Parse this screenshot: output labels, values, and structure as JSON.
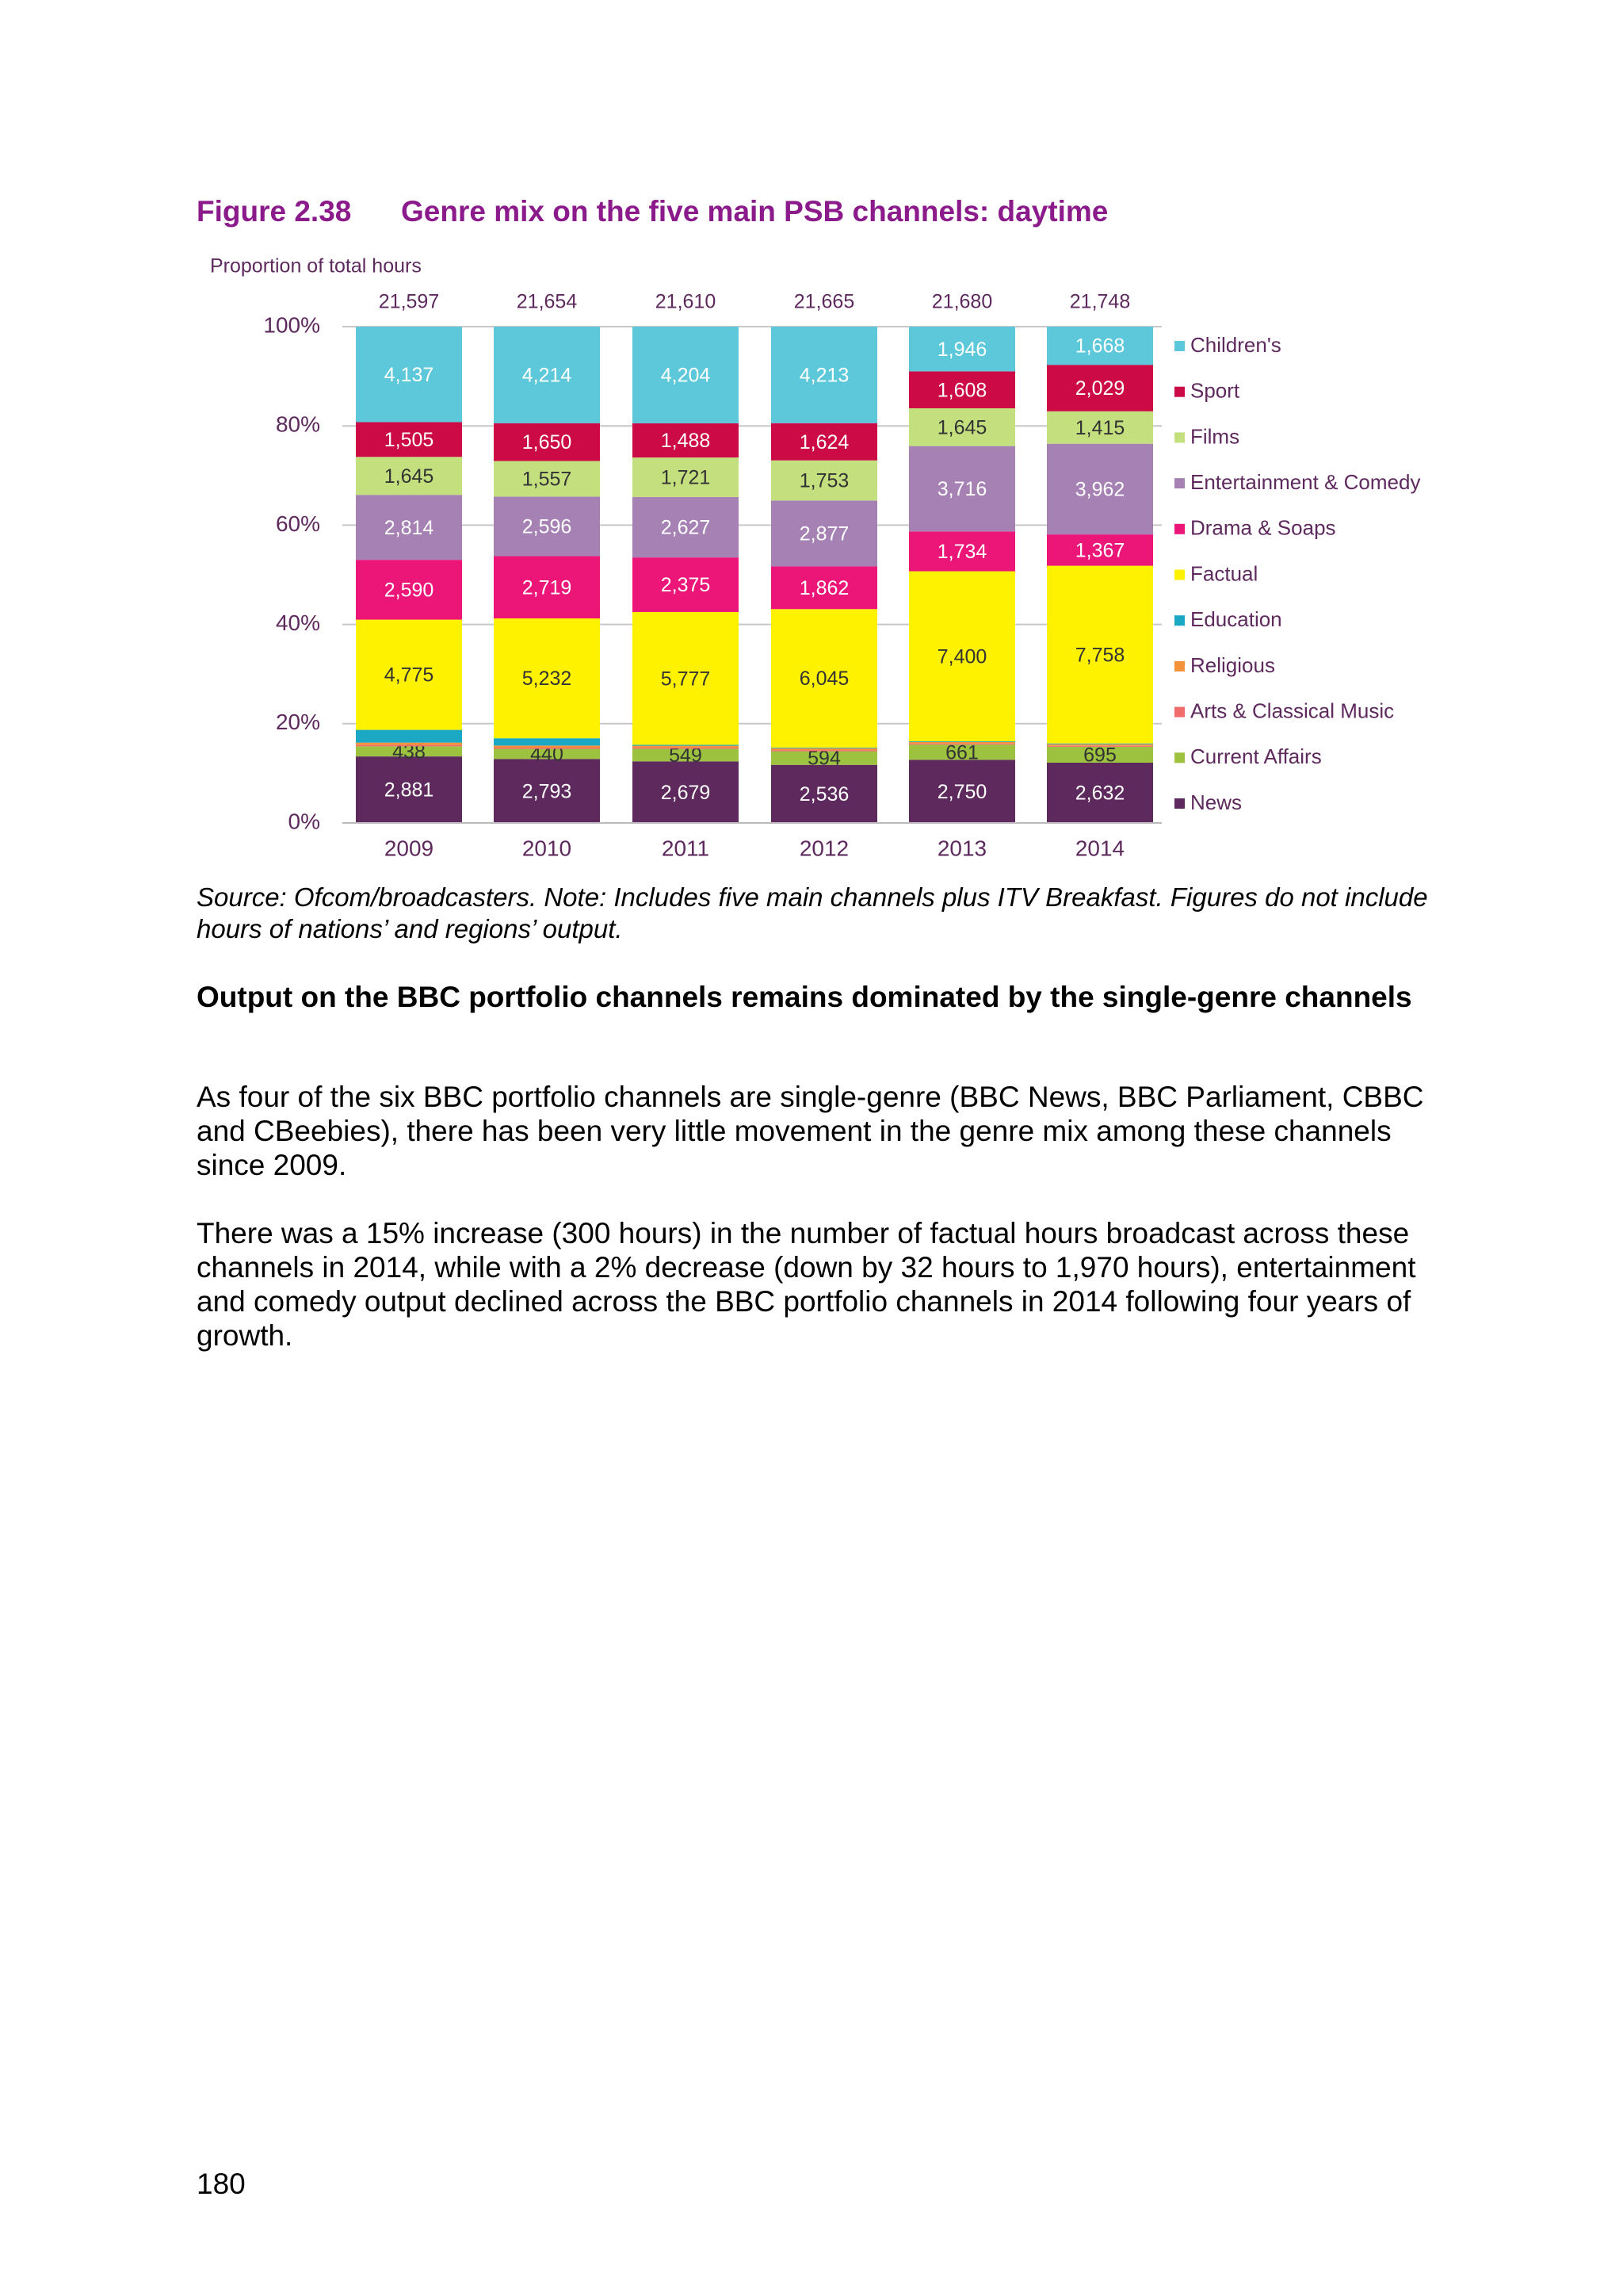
{
  "figure": {
    "number": "Figure 2.38",
    "title": "Genre mix on the five main PSB channels: daytime"
  },
  "chart_data": {
    "type": "bar",
    "stacked": true,
    "normalized": true,
    "ylabel": "Proportion of total hours",
    "ylim": [
      0,
      100
    ],
    "yticks": [
      "0%",
      "20%",
      "40%",
      "60%",
      "80%",
      "100%"
    ],
    "categories": [
      "2009",
      "2010",
      "2011",
      "2012",
      "2013",
      "2014"
    ],
    "totals": [
      "21,597",
      "21,654",
      "21,610",
      "21,665",
      "21,680",
      "21,748"
    ],
    "series": [
      {
        "name": "News",
        "color": "#5e2a5e",
        "values": [
          2881,
          2793,
          2679,
          2536,
          2750,
          2632
        ],
        "labels": [
          "2,881",
          "2,793",
          "2,679",
          "2,536",
          "2,750",
          "2,632"
        ]
      },
      {
        "name": "Current Affairs",
        "color": "#9cc23f",
        "values": [
          438,
          440,
          549,
          594,
          661,
          695
        ],
        "labels": [
          "438",
          "440",
          "549",
          "594",
          "661",
          "695"
        ]
      },
      {
        "name": "Arts & Classical Music",
        "color": "#f06b6b",
        "values": [
          60,
          55,
          50,
          50,
          45,
          40
        ],
        "labels": [
          "",
          "",
          "",
          "",
          "",
          ""
        ]
      },
      {
        "name": "Religious",
        "color": "#f4923b",
        "values": [
          100,
          90,
          80,
          80,
          70,
          70
        ],
        "labels": [
          "",
          "",
          "",
          "",
          "",
          ""
        ]
      },
      {
        "name": "Education",
        "color": "#1aa8c4",
        "values": [
          553,
          318,
          40,
          30,
          30,
          35
        ],
        "labels": [
          "",
          "",
          "",
          "",
          "",
          ""
        ]
      },
      {
        "name": "Factual",
        "color": "#fff200",
        "values": [
          4775,
          5232,
          5777,
          6045,
          7400,
          7758
        ],
        "labels": [
          "4,775",
          "5,232",
          "5,777",
          "6,045",
          "7,400",
          "7,758"
        ]
      },
      {
        "name": "Drama & Soaps",
        "color": "#ec1679",
        "values": [
          2590,
          2719,
          2375,
          1862,
          1734,
          1367
        ],
        "labels": [
          "2,590",
          "2,719",
          "2,375",
          "1,862",
          "1,734",
          "1,367"
        ]
      },
      {
        "name": "Entertainment & Comedy",
        "color": "#a681b4",
        "values": [
          2814,
          2596,
          2627,
          2877,
          3716,
          3962
        ],
        "labels": [
          "2,814",
          "2,596",
          "2,627",
          "2,877",
          "3,716",
          "3,962"
        ]
      },
      {
        "name": "Films",
        "color": "#c3df7e",
        "values": [
          1645,
          1557,
          1721,
          1753,
          1645,
          1415
        ],
        "labels": [
          "1,645",
          "1,557",
          "1,721",
          "1,753",
          "1,645",
          "1,415"
        ]
      },
      {
        "name": "Sport",
        "color": "#cc0a45",
        "values": [
          1505,
          1650,
          1488,
          1624,
          1608,
          2029
        ],
        "labels": [
          "1,505",
          "1,650",
          "1,488",
          "1,624",
          "1,608",
          "2,029"
        ]
      },
      {
        "name": "Children's",
        "color": "#5cc8d9",
        "values": [
          4137,
          4214,
          4204,
          4213,
          1946,
          1668
        ],
        "labels": [
          "4,137",
          "4,214",
          "4,204",
          "4,213",
          "1,946",
          "1,668"
        ]
      }
    ],
    "legend": [
      "Children's",
      "Sport",
      "Films",
      "Entertainment & Comedy",
      "Drama & Soaps",
      "Factual",
      "Education",
      "Religious",
      "Arts & Classical Music",
      "Current Affairs",
      "News"
    ],
    "legend_position": "right",
    "grid": true,
    "colors": {
      "axis_text": "#5e2a5e",
      "grid": "#c8c8c8"
    }
  },
  "source_note": "Source: Ofcom/broadcasters. Note: Includes five main channels plus ITV Breakfast. Figures do not include hours of nations’ and regions’ output.",
  "section_heading": "Output on the BBC portfolio channels remains dominated by the single-genre channels",
  "paragraphs": [
    "As four of the six BBC portfolio channels are single-genre (BBC News, BBC Parliament, CBBC and CBeebies), there has been very little movement in the genre mix among these channels since 2009.",
    "There was a 15% increase (300 hours) in the number of factual hours broadcast across these channels in 2014, while with a 2% decrease (down by 32 hours to 1,970 hours), entertainment and comedy output declined across the BBC portfolio channels in 2014 following four years of growth."
  ],
  "page_number": "180"
}
